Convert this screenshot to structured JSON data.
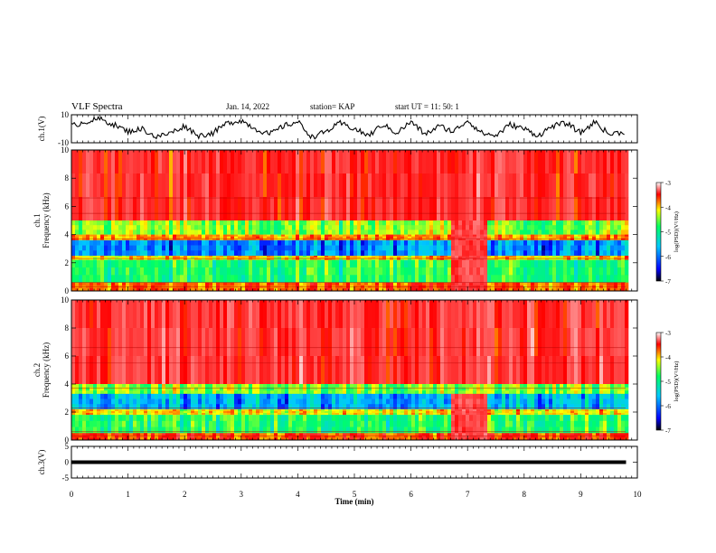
{
  "header": {
    "title": "VLF Spectra",
    "date": "Jan. 14, 2022",
    "station": "station= KAP",
    "start": "start  UT  =   11: 50: 1"
  },
  "colors": {
    "axis": "#000000",
    "trace": "#000000",
    "colormap": [
      "#000000",
      "#0000ff",
      "#00c8ff",
      "#00ff64",
      "#ffff00",
      "#ff0000",
      "#ffffff"
    ]
  },
  "chart_data": [
    {
      "type": "line",
      "name": "ch1-voltage",
      "ylabel": "ch.1(V)",
      "ylim": [
        -10,
        10
      ],
      "yticks": [
        10,
        -10
      ],
      "xlim": [
        0,
        10
      ],
      "x": [
        0,
        0.25,
        0.5,
        0.75,
        1.0,
        1.25,
        1.5,
        1.75,
        2.0,
        2.25,
        2.5,
        2.75,
        3.0,
        3.25,
        3.5,
        3.75,
        4.0,
        4.25,
        4.5,
        4.75,
        5.0,
        5.25,
        5.5,
        5.75,
        6.0,
        6.25,
        6.5,
        6.75,
        7.0,
        7.25,
        7.5,
        7.75,
        8.0,
        8.25,
        8.5,
        8.75,
        9.0,
        9.25,
        9.5,
        9.8
      ],
      "values": [
        2,
        5,
        7,
        3,
        -2,
        0,
        -6,
        -3,
        2,
        -5,
        -3,
        4,
        6,
        0,
        -4,
        2,
        5,
        -6,
        -2,
        4,
        0,
        -5,
        3,
        -3,
        5,
        -4,
        2,
        -2,
        6,
        -3,
        -5,
        3,
        0,
        -5,
        2,
        4,
        -3,
        5,
        -4,
        -2
      ]
    },
    {
      "type": "heatmap",
      "name": "ch1-spectrogram",
      "ylabel": "ch.1\nFrequency  (kHz)",
      "yticks": [
        10,
        8,
        6,
        4,
        2,
        0
      ],
      "ylim": [
        0,
        10
      ],
      "xlim": [
        0,
        10
      ],
      "colorbar": {
        "label": "log(PSD)(V²/Hz)",
        "ticks": [
          -3,
          -4,
          -5,
          -6,
          -7
        ]
      },
      "bands": [
        {
          "from": 5.0,
          "to": 10.0,
          "level": -3.8
        },
        {
          "from": 4.0,
          "to": 5.0,
          "level": -5.0
        },
        {
          "from": 3.6,
          "to": 4.0,
          "level": -4.4
        },
        {
          "from": 2.5,
          "to": 3.6,
          "level": -6.2
        },
        {
          "from": 2.2,
          "to": 2.5,
          "level": -4.6
        },
        {
          "from": 0.6,
          "to": 2.2,
          "level": -5.3
        },
        {
          "from": 0.0,
          "to": 0.6,
          "level": -4.3
        }
      ],
      "anomaly": {
        "from_min": 6.65,
        "to_min": 7.3,
        "top_khz": 5.0,
        "level": -3.6
      }
    },
    {
      "type": "heatmap",
      "name": "ch2-spectrogram",
      "ylabel": "ch.2\nFrequency  (kHz)",
      "yticks": [
        10,
        8,
        6,
        4,
        2,
        0
      ],
      "ylim": [
        0,
        10
      ],
      "xlim": [
        0,
        10
      ],
      "colorbar": {
        "label": "log(PSD)(V²/Hz)",
        "ticks": [
          -3,
          -4,
          -5,
          -6,
          -7
        ]
      },
      "bands": [
        {
          "from": 4.0,
          "to": 10.0,
          "level": -3.7
        },
        {
          "from": 3.3,
          "to": 4.0,
          "level": -5.0
        },
        {
          "from": 2.2,
          "to": 3.3,
          "level": -6.0
        },
        {
          "from": 1.8,
          "to": 2.2,
          "level": -4.6
        },
        {
          "from": 0.5,
          "to": 1.8,
          "level": -5.3
        },
        {
          "from": 0.0,
          "to": 0.5,
          "level": -4.1
        }
      ],
      "anomaly": {
        "from_min": 6.65,
        "to_min": 7.3,
        "top_khz": 3.6,
        "level": -3.6
      }
    },
    {
      "type": "line",
      "name": "ch3-voltage",
      "ylabel": "ch.3(V)",
      "ylim": [
        -5,
        5
      ],
      "yticks": [
        5,
        0,
        -5
      ],
      "xlim": [
        0,
        10
      ],
      "x": [
        0,
        9.8
      ],
      "values": [
        0,
        0
      ],
      "xlabel": "Time  (min)",
      "xticks": [
        0,
        1,
        2,
        3,
        4,
        5,
        6,
        7,
        8,
        9,
        10
      ]
    }
  ]
}
